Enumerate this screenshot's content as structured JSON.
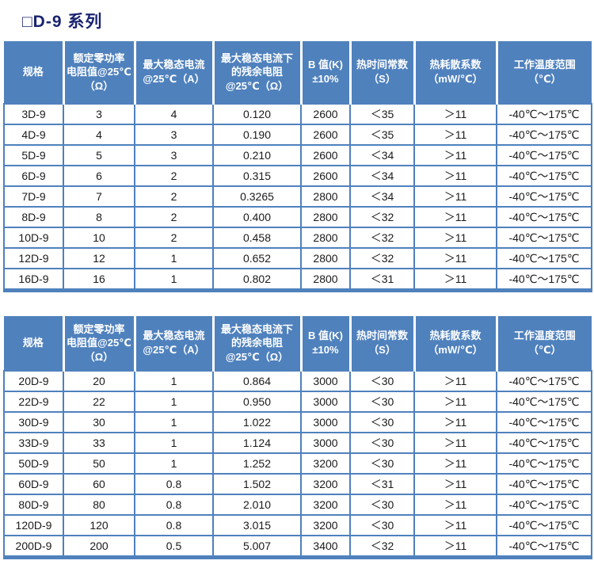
{
  "title": "□D-9 系列",
  "headers": [
    "规格",
    "额定零功率\n电阻值@25℃\n（Ω）",
    "最大稳态电流\n@25℃（A）",
    "最大稳态电流下\n的残余电阻\n@25℃（Ω）",
    "B 值(K)\n±10%",
    "热时间常数\n（S）",
    "热耗散系数\n（mW/℃）",
    "工作温度范围\n（℃）"
  ],
  "table1": {
    "rows": [
      [
        "3D-9",
        "3",
        "4",
        "0.120",
        "2600",
        "＜35",
        "＞11",
        "-40℃～175℃"
      ],
      [
        "4D-9",
        "4",
        "3",
        "0.190",
        "2600",
        "＜35",
        "＞11",
        "-40℃～175℃"
      ],
      [
        "5D-9",
        "5",
        "3",
        "0.210",
        "2600",
        "＜34",
        "＞11",
        "-40℃～175℃"
      ],
      [
        "6D-9",
        "6",
        "2",
        "0.315",
        "2600",
        "＜34",
        "＞11",
        "-40℃～175℃"
      ],
      [
        "7D-9",
        "7",
        "2",
        "0.3265",
        "2800",
        "＜34",
        "＞11",
        "-40℃～175℃"
      ],
      [
        "8D-9",
        "8",
        "2",
        "0.400",
        "2800",
        "＜32",
        "＞11",
        "-40℃～175℃"
      ],
      [
        "10D-9",
        "10",
        "2",
        "0.458",
        "2800",
        "＜32",
        "＞11",
        "-40℃～175℃"
      ],
      [
        "12D-9",
        "12",
        "1",
        "0.652",
        "2800",
        "＜32",
        "＞11",
        "-40℃～175℃"
      ],
      [
        "16D-9",
        "16",
        "1",
        "0.802",
        "2800",
        "＜31",
        "＞11",
        "-40℃～175℃"
      ]
    ]
  },
  "table2": {
    "rows": [
      [
        "20D-9",
        "20",
        "1",
        "0.864",
        "3000",
        "＜30",
        "＞11",
        "-40℃～175℃"
      ],
      [
        "22D-9",
        "22",
        "1",
        "0.950",
        "3000",
        "＜30",
        "＞11",
        "-40℃～175℃"
      ],
      [
        "30D-9",
        "30",
        "1",
        "1.022",
        "3000",
        "＜30",
        "＞11",
        "-40℃～175℃"
      ],
      [
        "33D-9",
        "33",
        "1",
        "1.124",
        "3000",
        "＜30",
        "＞11",
        "-40℃～175℃"
      ],
      [
        "50D-9",
        "50",
        "1",
        "1.252",
        "3200",
        "＜30",
        "＞11",
        "-40℃～175℃"
      ],
      [
        "60D-9",
        "60",
        "0.8",
        "1.502",
        "3200",
        "＜31",
        "＞11",
        "-40℃～175℃"
      ],
      [
        "80D-9",
        "80",
        "0.8",
        "2.010",
        "3200",
        "＜30",
        "＞11",
        "-40℃～175℃"
      ],
      [
        "120D-9",
        "120",
        "0.8",
        "3.015",
        "3200",
        "＜30",
        "＞11",
        "-40℃～175℃"
      ],
      [
        "200D-9",
        "200",
        "0.5",
        "5.007",
        "3400",
        "＜32",
        "＞11",
        "-40℃～175℃"
      ]
    ]
  },
  "colors": {
    "header_bg": "#4f81bd",
    "cell_border": "#4f81bd",
    "title_text": "#1a2470",
    "header_text": "#ffffff",
    "cell_text": "#1a1a1a"
  }
}
